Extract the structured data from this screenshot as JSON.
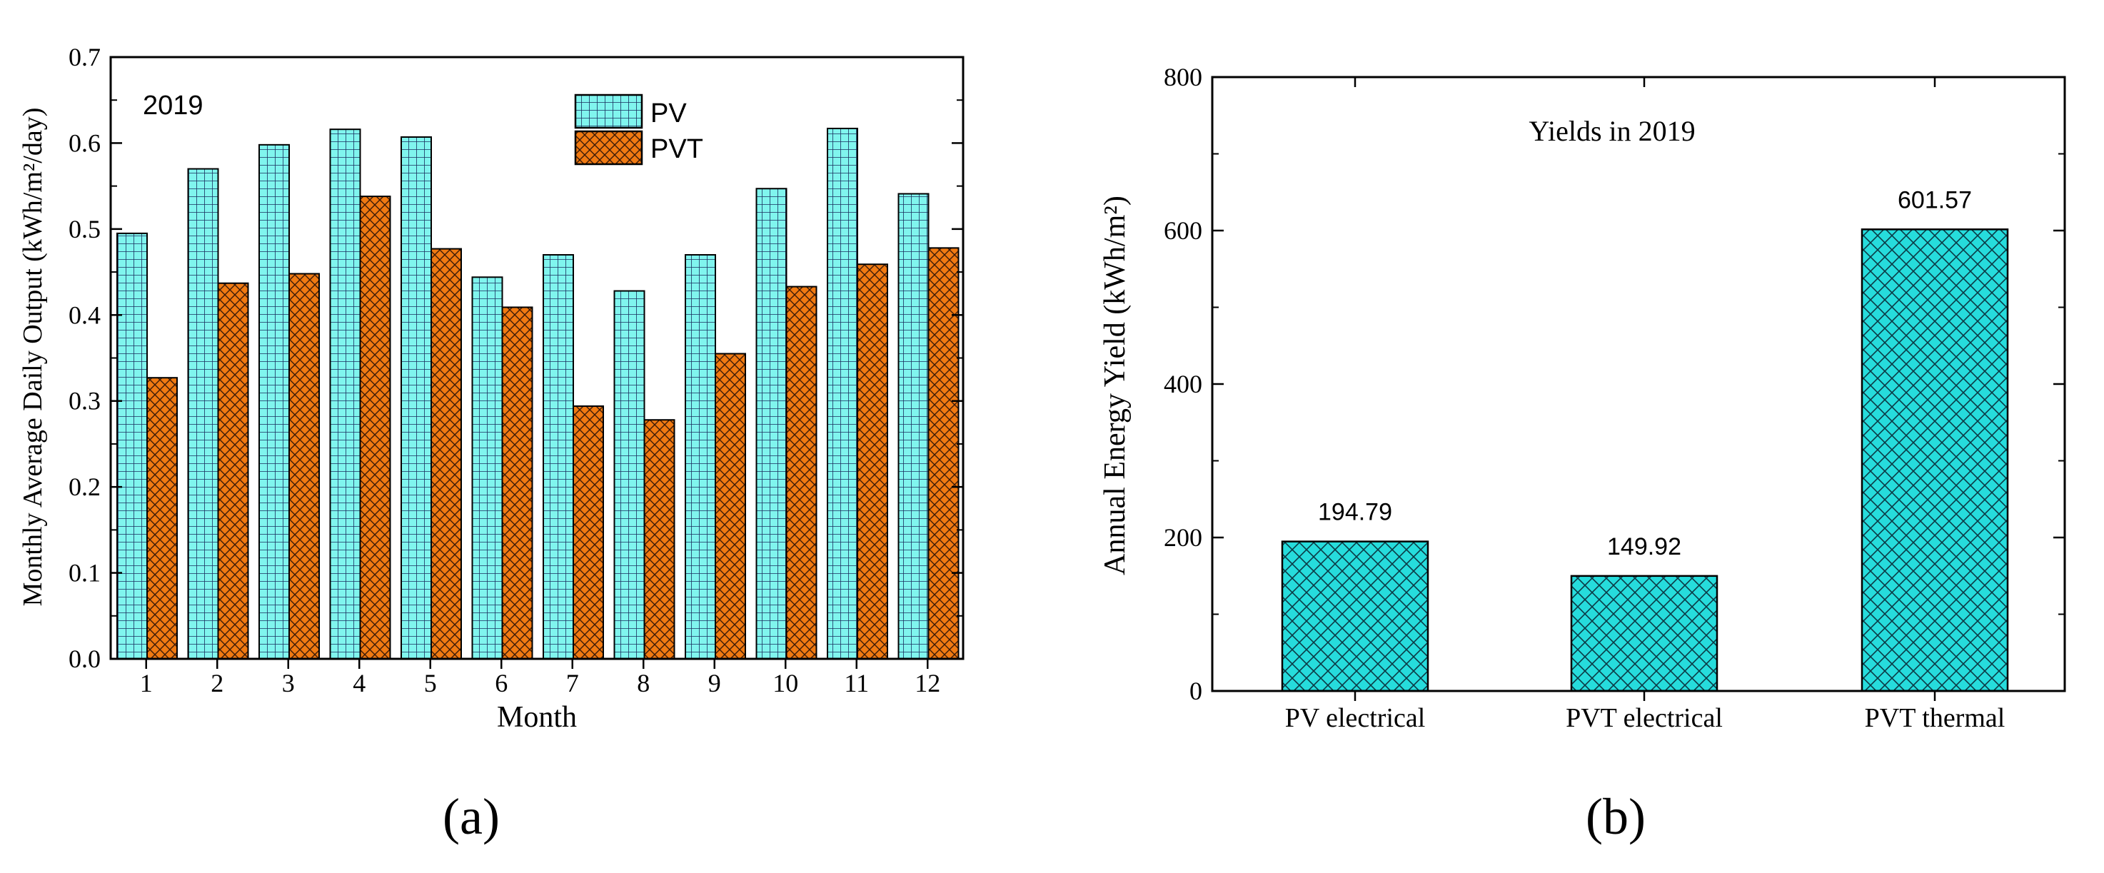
{
  "colors": {
    "pv": "#80f5ee",
    "pvt": "#f07a12",
    "bar_b": "#26dcdc",
    "axis": "#000000"
  },
  "panel_a": {
    "panel_label": "(a)",
    "year_label": "2019",
    "ylabel": "Monthly Average Daily Output (kWh/m²/day)",
    "xlabel": "Month",
    "legend": {
      "pv": "PV",
      "pvt": "PVT"
    },
    "ytick_labels": [
      "0.0",
      "0.1",
      "0.2",
      "0.3",
      "0.4",
      "0.5",
      "0.6",
      "0.7"
    ],
    "xtick_labels": [
      "1",
      "2",
      "3",
      "4",
      "5",
      "6",
      "7",
      "8",
      "9",
      "10",
      "11",
      "12"
    ]
  },
  "panel_b": {
    "panel_label": "(b)",
    "title": "Yields in 2019",
    "ylabel": "Annual Energy Yield (kWh/m²)",
    "ytick_labels": [
      "0",
      "200",
      "400",
      "600",
      "800"
    ],
    "categories": [
      "PV electrical",
      "PVT electrical",
      "PVT thermal"
    ],
    "value_labels": [
      "194.79",
      "149.92",
      "601.57"
    ]
  },
  "chart_data": [
    {
      "type": "bar",
      "title": "2019",
      "xlabel": "Month",
      "ylabel": "Monthly Average Daily Output (kWh/m²/day)",
      "categories": [
        "1",
        "2",
        "3",
        "4",
        "5",
        "6",
        "7",
        "8",
        "9",
        "10",
        "11",
        "12"
      ],
      "series": [
        {
          "name": "PV",
          "values": [
            0.495,
            0.57,
            0.598,
            0.616,
            0.607,
            0.444,
            0.47,
            0.428,
            0.47,
            0.547,
            0.617,
            0.541
          ]
        },
        {
          "name": "PVT",
          "values": [
            0.327,
            0.437,
            0.448,
            0.538,
            0.477,
            0.409,
            0.294,
            0.278,
            0.355,
            0.433,
            0.459,
            0.478
          ]
        }
      ],
      "ylim": [
        0,
        0.7
      ],
      "legend_position": "top-right",
      "grid": false
    },
    {
      "type": "bar",
      "title": "Yields in 2019",
      "xlabel": "",
      "ylabel": "Annual Energy Yield (kWh/m²)",
      "categories": [
        "PV electrical",
        "PVT electrical",
        "PVT thermal"
      ],
      "values": [
        194.79,
        149.92,
        601.57
      ],
      "ylim": [
        0,
        800
      ],
      "grid": false
    }
  ]
}
